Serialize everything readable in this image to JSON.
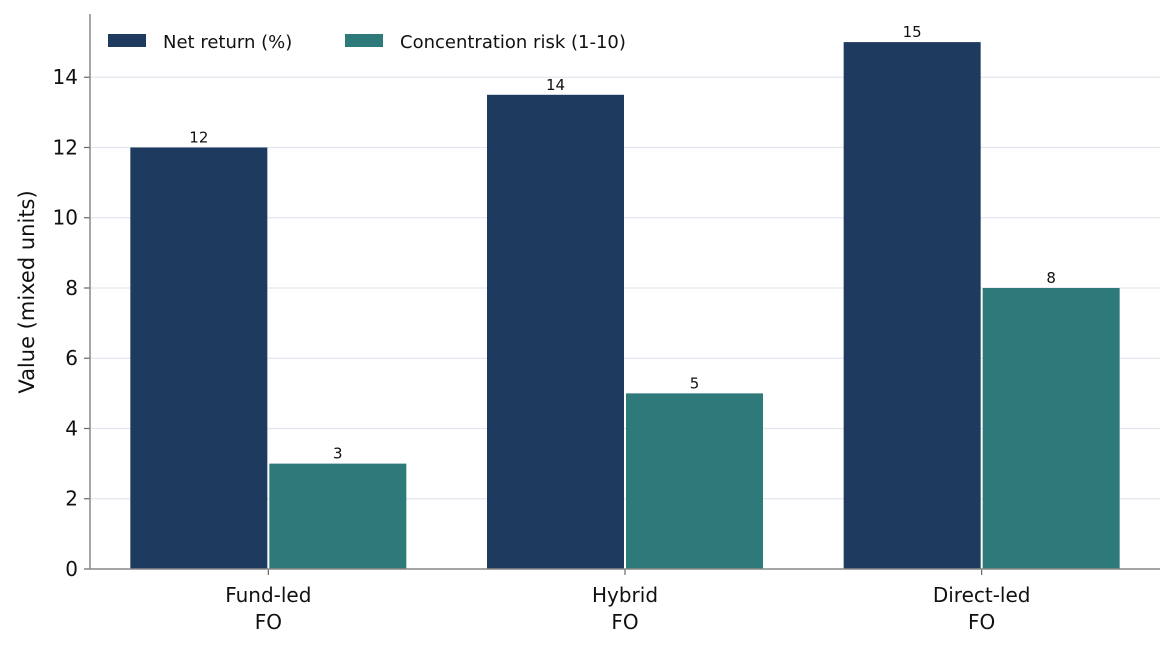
{
  "chart_data": {
    "type": "bar",
    "categories": [
      [
        "Fund-led",
        "FO"
      ],
      [
        "Hybrid",
        "FO"
      ],
      [
        "Direct-led",
        "FO"
      ]
    ],
    "series": [
      {
        "name": "Net return (%)",
        "values": [
          12,
          13.5,
          15
        ],
        "labels": [
          "12",
          "14",
          "15"
        ],
        "color": "#1f3a5f"
      },
      {
        "name": "Concentration risk (1-10)",
        "values": [
          3,
          5,
          8
        ],
        "labels": [
          "3",
          "5",
          "8"
        ],
        "color": "#2e7a7b"
      }
    ],
    "ylabel": "Value (mixed units)",
    "xlabel": "",
    "ylim": [
      0,
      15.8
    ],
    "yticks": [
      0,
      2,
      4,
      6,
      8,
      10,
      12,
      14
    ],
    "grid": "horizontal",
    "legend_position": "top-left"
  }
}
